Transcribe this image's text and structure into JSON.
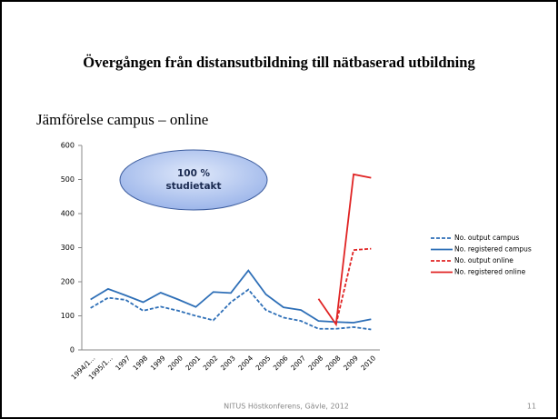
{
  "slide": {
    "title": "Övergången från distansutbildning till nätbaserad utbildning",
    "subtitle": "Jämförelse campus – online",
    "footer": "NITUS Höstkonferens, Gävle, 2012",
    "page_number": "11"
  },
  "chart_data": {
    "type": "line",
    "categories": [
      "1994/1...",
      "1995/1...",
      "1997",
      "1998",
      "1999",
      "2000",
      "2001",
      "2002",
      "2003",
      "2004",
      "2005",
      "2006",
      "2007",
      "2008",
      "2008",
      "2009",
      "2010"
    ],
    "series": [
      {
        "name": "No. output campus",
        "color": "#2e6fb7",
        "dashed": true,
        "values": [
          123,
          153,
          147,
          115,
          127,
          115,
          100,
          87,
          140,
          177,
          117,
          95,
          85,
          62,
          62,
          67,
          60
        ]
      },
      {
        "name": "No. registered campus",
        "color": "#2e6fb7",
        "dashed": false,
        "values": [
          148,
          179,
          160,
          140,
          168,
          148,
          126,
          170,
          167,
          233,
          163,
          125,
          117,
          85,
          82,
          80,
          90
        ]
      },
      {
        "name": "No. output online",
        "color": "#e02424",
        "dashed": true,
        "values": [
          null,
          null,
          null,
          null,
          null,
          null,
          null,
          null,
          null,
          null,
          null,
          null,
          null,
          null,
          75,
          293,
          297
        ]
      },
      {
        "name": "No. registered online",
        "color": "#e02424",
        "dashed": false,
        "values": [
          null,
          null,
          null,
          null,
          null,
          null,
          null,
          null,
          null,
          null,
          null,
          null,
          null,
          150,
          75,
          515,
          505
        ]
      }
    ],
    "ylim": [
      0,
      600
    ],
    "yticks": [
      0,
      100,
      200,
      300,
      400,
      500,
      600
    ],
    "grid": false,
    "legend": "right",
    "annotation": [
      "100 %",
      "studietakt"
    ]
  }
}
